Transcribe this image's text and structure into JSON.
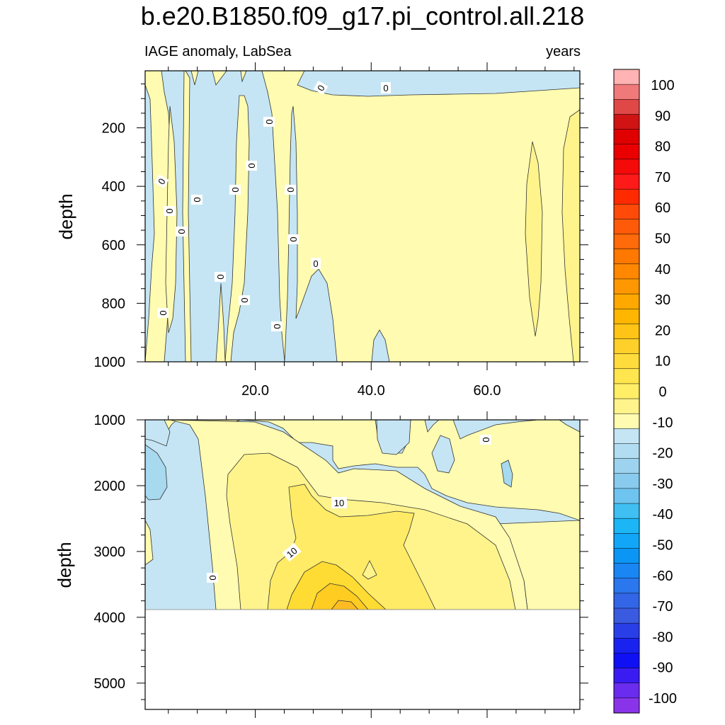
{
  "title": "b.e20.B1850.f09_g17.pi_control.all.218",
  "left_string": "IAGE anomaly, LabSea",
  "right_string": "years",
  "colors": {
    "neg_fill": "#c5e5f4",
    "neg_fill_deep": "#a7d9ef",
    "pos_0_5": "#fffbb0",
    "pos_5_10": "#fff48c",
    "pos_10_15": "#ffeb66",
    "pos_15_20": "#ffdc33",
    "pos_20_25": "#ffcc22"
  },
  "chart_data": [
    {
      "type": "contour",
      "name": "upper",
      "xlabel": "",
      "ylabel": "depth",
      "xlim": [
        1,
        76
      ],
      "ylim": [
        1000,
        5
      ],
      "y_ticks": [
        "200",
        "400",
        "600",
        "800",
        "1000"
      ],
      "x_ticks": [
        "20.0",
        "40.0",
        "60.0"
      ],
      "contour_labels": [
        "0",
        "0",
        "0",
        "0",
        "0",
        "0",
        "0",
        "0",
        "0",
        "0",
        "0",
        "0",
        "0",
        "0",
        "0",
        "0",
        "0"
      ]
    },
    {
      "type": "contour",
      "name": "lower",
      "xlabel": "",
      "ylabel": "depth",
      "xlim": [
        1,
        76
      ],
      "ylim": [
        5400,
        1000
      ],
      "y_ticks": [
        "1000",
        "2000",
        "3000",
        "4000",
        "5000"
      ],
      "contour_labels": [
        "0",
        "10",
        "10",
        "0"
      ],
      "data_bottom_depth": 3850
    },
    {
      "type": "colorbar",
      "levels": [
        -100,
        -95,
        -90,
        -85,
        -80,
        -75,
        -70,
        -65,
        -60,
        -55,
        -50,
        -45,
        -40,
        -35,
        -30,
        -25,
        -20,
        -15,
        -10,
        -5,
        0,
        5,
        10,
        15,
        20,
        25,
        30,
        35,
        40,
        45,
        50,
        55,
        60,
        65,
        70,
        75,
        80,
        85,
        90,
        95,
        100
      ],
      "labels": [
        "100",
        "90",
        "80",
        "70",
        "60",
        "50",
        "40",
        "30",
        "20",
        "10",
        "0",
        "-10",
        "-20",
        "-30",
        "-40",
        "-50",
        "-60",
        "-70",
        "-80",
        "-90",
        "-100"
      ],
      "colors_top_to_bottom": [
        "#ffb3b3",
        "#f07a7a",
        "#e04848",
        "#d01414",
        "#e00000",
        "#ea0000",
        "#f50a0a",
        "#ff1a1a",
        "#ff2a00",
        "#ff4a0a",
        "#ff5a0a",
        "#ff6a0a",
        "#ff7800",
        "#ff8800",
        "#ff9800",
        "#ffa800",
        "#ffb600",
        "#ffc416",
        "#ffd02a",
        "#ffdc3c",
        "#ffe64e",
        "#ffee66",
        "#fff48c",
        "#fffbb0",
        "#c5e5f4",
        "#b1dcf1",
        "#9dd3ef",
        "#88cbee",
        "#6fc4ef",
        "#3fbff2",
        "#1cb6f6",
        "#12a6f8",
        "#0b96f6",
        "#1a86f4",
        "#2a77ee",
        "#3366e6",
        "#3a5ae0",
        "#2a3ee8",
        "#1a22f0",
        "#1010f4",
        "#3a1cf2",
        "#6a2cee",
        "#8a34ea"
      ]
    }
  ]
}
